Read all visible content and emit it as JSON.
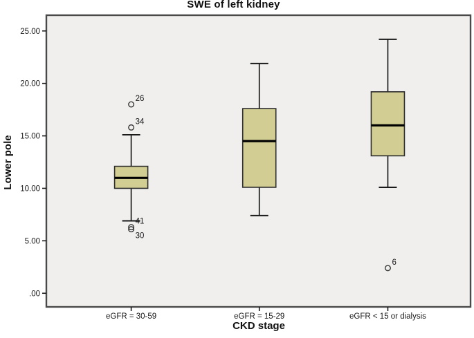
{
  "chart_data": {
    "type": "boxplot",
    "title": "SWE of left kidney",
    "xlabel": "CKD stage",
    "ylabel": "Lower pole",
    "legend": "none",
    "grid": false,
    "plot_bg": "#f0efee",
    "border_color": "#4a4a4a",
    "box_fill": "#d2cd92",
    "box_stroke": "#2b2b2b",
    "median_color": "#000000",
    "whisker_color": "#1a1a1a",
    "outlier_stroke": "#383838",
    "tick_label_color": "#1a1a1a",
    "ylim": [
      -1.3,
      26.5
    ],
    "yticks": [
      {
        "value": 0,
        "label": ".00"
      },
      {
        "value": 5,
        "label": "5.00"
      },
      {
        "value": 10,
        "label": "10.00"
      },
      {
        "value": 15,
        "label": "15.00"
      },
      {
        "value": 20,
        "label": "20.00"
      },
      {
        "value": 25,
        "label": "25.00"
      }
    ],
    "categories": [
      "eGFR = 30-59",
      "eGFR = 15-29",
      "eGFR < 15 or dialysis"
    ],
    "series": [
      {
        "category": "eGFR = 30-59",
        "whisker_low": 6.9,
        "q1": 10.0,
        "median": 11.0,
        "q3": 12.1,
        "whisker_high": 15.1,
        "outliers": [
          {
            "value": 18.0,
            "label": "26",
            "label_pos": "above-right"
          },
          {
            "value": 15.8,
            "label": "34",
            "label_pos": "above-right"
          },
          {
            "value": 6.3,
            "label": "41",
            "label_pos": "above-right"
          },
          {
            "value": 6.1,
            "label": "30",
            "label_pos": "below-right"
          }
        ]
      },
      {
        "category": "eGFR = 15-29",
        "whisker_low": 7.4,
        "q1": 10.1,
        "median": 14.5,
        "q3": 17.6,
        "whisker_high": 21.9,
        "outliers": []
      },
      {
        "category": "eGFR < 15 or dialysis",
        "whisker_low": 10.1,
        "q1": 13.1,
        "median": 16.0,
        "q3": 19.2,
        "whisker_high": 24.2,
        "outliers": [
          {
            "value": 2.4,
            "label": "6",
            "label_pos": "above-right"
          }
        ]
      }
    ]
  }
}
